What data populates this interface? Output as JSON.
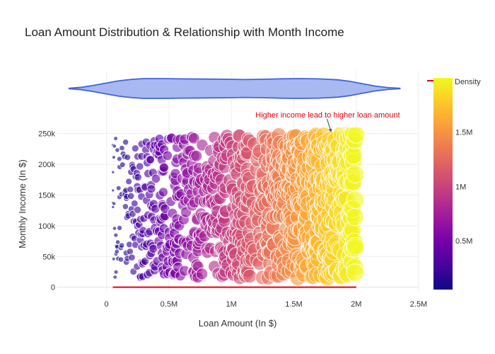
{
  "chart_data": {
    "type": "scatter",
    "title": "Loan Amount Distribution & Relationship with Month Income",
    "xlabel": "Loan Amount (In $)",
    "ylabel": "Monthly Income (In $)",
    "xlim": [
      -400000,
      2500000
    ],
    "ylim": [
      -5000,
      260000
    ],
    "x_ticks": [
      {
        "value": 0,
        "label": "0"
      },
      {
        "value": 500000,
        "label": "0.5M"
      },
      {
        "value": 1000000,
        "label": "1M"
      },
      {
        "value": 1500000,
        "label": "1.5M"
      },
      {
        "value": 2000000,
        "label": "2M"
      },
      {
        "value": 2500000,
        "label": "2.5M"
      }
    ],
    "y_ticks": [
      {
        "value": 0,
        "label": "0"
      },
      {
        "value": 50000,
        "label": "50k"
      },
      {
        "value": 100000,
        "label": "100k"
      },
      {
        "value": 150000,
        "label": "150k"
      },
      {
        "value": 200000,
        "label": "200k"
      },
      {
        "value": 250000,
        "label": "250k"
      }
    ],
    "grid": true,
    "scatter": {
      "x_range": [
        50000,
        2000000
      ],
      "y_range": [
        15000,
        250000
      ],
      "point_count": 1000,
      "size_encodes": "Loan Amount",
      "color_encodes": "Loan Amount"
    },
    "violin": {
      "orientation": "horizontal",
      "x_range": [
        -300000,
        2350000
      ],
      "fill_color": "#9fb1ef",
      "line_color": "#4164d9",
      "profile": [
        {
          "x": -300000,
          "h": 0.02
        },
        {
          "x": -200000,
          "h": 0.12
        },
        {
          "x": -100000,
          "h": 0.32
        },
        {
          "x": 0,
          "h": 0.55
        },
        {
          "x": 100000,
          "h": 0.78
        },
        {
          "x": 200000,
          "h": 0.92
        },
        {
          "x": 300000,
          "h": 1.0
        },
        {
          "x": 450000,
          "h": 1.0
        },
        {
          "x": 600000,
          "h": 0.97
        },
        {
          "x": 800000,
          "h": 0.95
        },
        {
          "x": 1000000,
          "h": 0.93
        },
        {
          "x": 1100000,
          "h": 0.9
        },
        {
          "x": 1250000,
          "h": 0.93
        },
        {
          "x": 1400000,
          "h": 0.98
        },
        {
          "x": 1550000,
          "h": 1.0
        },
        {
          "x": 1700000,
          "h": 0.97
        },
        {
          "x": 1850000,
          "h": 0.88
        },
        {
          "x": 1950000,
          "h": 0.72
        },
        {
          "x": 2050000,
          "h": 0.48
        },
        {
          "x": 2150000,
          "h": 0.25
        },
        {
          "x": 2250000,
          "h": 0.1
        },
        {
          "x": 2350000,
          "h": 0.02
        }
      ]
    },
    "reference_line": {
      "x_start": 50000,
      "x_end": 2000000,
      "y": 0,
      "color": "#e8000b"
    },
    "annotation": {
      "text": "Higher income lead to higher loan amount",
      "arrow_to_x": 1800000,
      "arrow_to_y": 250000,
      "color": "#e8000b"
    },
    "colorbar": {
      "title": "Density",
      "colorscale": "Plasma",
      "stops": [
        "#0d0887",
        "#46039f",
        "#7201a8",
        "#9c179e",
        "#bd3786",
        "#d8576b",
        "#ed7953",
        "#fb9f3a",
        "#fdca26",
        "#f0f921"
      ],
      "range": [
        50000,
        2000000
      ],
      "ticks": [
        {
          "value": 500000,
          "label": "0.5M"
        },
        {
          "value": 1000000,
          "label": "1M"
        },
        {
          "value": 1500000,
          "label": "1.5M"
        }
      ]
    }
  }
}
